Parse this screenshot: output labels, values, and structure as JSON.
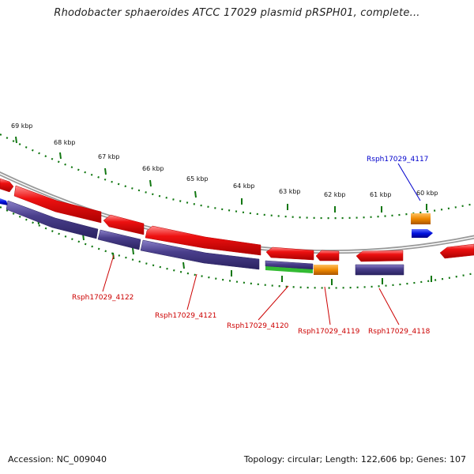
{
  "title": "Rhodobacter sphaeroides ATCC 17029 plasmid pRSPH01, complete...",
  "footer": {
    "accession": "Accession: NC_009040",
    "summary": "Topology: circular; Length: 122,606 bp; Genes: 107"
  },
  "scale_labels": [
    "69 kbp",
    "68 kbp",
    "67 kbp",
    "66 kbp",
    "65 kbp",
    "64 kbp",
    "63 kbp",
    "62 kbp",
    "61 kbp",
    "60 kbp"
  ],
  "gene_labels": [
    {
      "text": "Rsph17029_4117",
      "color": "#0000cc"
    },
    {
      "text": "Rsph17029_4118",
      "color": "#cc0000"
    },
    {
      "text": "Rsph17029_4119",
      "color": "#cc0000"
    },
    {
      "text": "Rsph17029_4120",
      "color": "#cc0000"
    },
    {
      "text": "Rsph17029_4121",
      "color": "#cc0000"
    },
    {
      "text": "Rsph17029_4122",
      "color": "#cc0000"
    }
  ],
  "colors": {
    "cds_red": "#ee1111",
    "cds_purple": "#4a3f8c",
    "orange": "#ee8800",
    "blue": "#0011dd",
    "green": "#33bb33",
    "backbone": "#888888",
    "ticks": "#117711"
  }
}
